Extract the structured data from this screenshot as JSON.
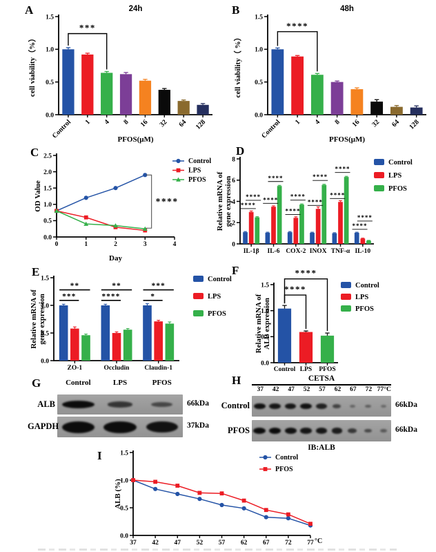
{
  "palette": {
    "blue": "#2453a6",
    "red": "#ec1c24",
    "green": "#35b04a",
    "purple": "#7c3e97",
    "orange": "#f58220",
    "black": "#0a0a0a",
    "brown": "#8a6a2e",
    "navy": "#252f5e"
  },
  "chart_data": [
    {
      "panel": "A",
      "type": "bar",
      "title": "24h",
      "ylabel": "cell viability（%）",
      "xlabel": "PFOS(μM)",
      "categories": [
        "Control",
        "1",
        "4",
        "8",
        "16",
        "32",
        "64",
        "128"
      ],
      "values": [
        1.0,
        0.92,
        0.64,
        0.62,
        0.52,
        0.38,
        0.21,
        0.15
      ],
      "errors": [
        0.025,
        0.02,
        0.02,
        0.025,
        0.02,
        0.02,
        0.015,
        0.02
      ],
      "bar_colors": [
        "#2453a6",
        "#ec1c24",
        "#35b04a",
        "#7c3e97",
        "#f58220",
        "#0a0a0a",
        "#8a6a2e",
        "#252f5e"
      ],
      "err_match": true,
      "rotate_labels": true,
      "ylim": [
        0,
        1.5
      ],
      "yticks": [
        "0.0",
        "0.5",
        "1.0",
        "1.5"
      ],
      "significance": [
        {
          "from": 0,
          "to": 2,
          "label": "***",
          "y": 1.24
        }
      ]
    },
    {
      "panel": "B",
      "type": "bar",
      "title": "48h",
      "ylabel": "cell viability（ %）",
      "xlabel": "PFOS(μM)",
      "categories": [
        "Control",
        "1",
        "4",
        "8",
        "16",
        "32",
        "64",
        "128"
      ],
      "values": [
        1.0,
        0.89,
        0.61,
        0.5,
        0.39,
        0.2,
        0.12,
        0.11
      ],
      "errors": [
        0.02,
        0.015,
        0.02,
        0.015,
        0.02,
        0.03,
        0.02,
        0.025
      ],
      "bar_colors": [
        "#2453a6",
        "#ec1c24",
        "#35b04a",
        "#7c3e97",
        "#f58220",
        "#0a0a0a",
        "#8a6a2e",
        "#252f5e"
      ],
      "err_match": true,
      "rotate_labels": true,
      "ylim": [
        0,
        1.5
      ],
      "yticks": [
        "0.0",
        "0.5",
        "1.0",
        "1.5"
      ],
      "significance": [
        {
          "from": 0,
          "to": 2,
          "label": "****",
          "y": 1.27
        }
      ]
    },
    {
      "panel": "C",
      "type": "line",
      "ylabel": "OD Value",
      "xlabel": "Day",
      "x_numeric": true,
      "x": [
        0,
        1,
        2,
        3
      ],
      "xlim": [
        0,
        4
      ],
      "xticks": [
        "0",
        "1",
        "2",
        "3",
        "4"
      ],
      "ylim": [
        0,
        2.5
      ],
      "yticks": [
        "0.0",
        "0.5",
        "1.0",
        "1.5",
        "2.0",
        "2.5"
      ],
      "series": [
        {
          "name": "Control",
          "color": "#2453a6",
          "marker": "circle",
          "values": [
            0.8,
            1.2,
            1.5,
            1.9
          ]
        },
        {
          "name": "LPS",
          "color": "#ec1c24",
          "marker": "square",
          "values": [
            0.8,
            0.6,
            0.3,
            0.2
          ]
        },
        {
          "name": "PFOS",
          "color": "#35b04a",
          "marker": "triangle",
          "values": [
            0.8,
            0.4,
            0.35,
            0.25
          ]
        }
      ],
      "bracket": {
        "x": 3.22,
        "x_tick": 3.03,
        "y_top": 1.9,
        "y_bottom": 0.27,
        "label": "****"
      }
    },
    {
      "panel": "D",
      "type": "grouped-bar",
      "ylabel_lines": [
        "Relative mRNA of",
        "gene expression"
      ],
      "categories": [
        "IL-1β",
        "IL-6",
        "COX-2",
        "INOX",
        "TNF-α",
        "IL-10"
      ],
      "series": [
        {
          "name": "Control",
          "color": "#2453a6",
          "values": [
            1.1,
            1.05,
            1.1,
            1.05,
            1.0,
            1.05
          ],
          "errors": [
            0.06,
            0.05,
            0.06,
            0.05,
            0.05,
            0.05
          ]
        },
        {
          "name": "LPS",
          "color": "#ec1c24",
          "values": [
            3.0,
            3.5,
            2.45,
            3.3,
            3.95,
            0.5
          ],
          "errors": [
            0.1,
            0.08,
            0.1,
            0.18,
            0.12,
            0.04
          ]
        },
        {
          "name": "PFOS",
          "color": "#35b04a",
          "values": [
            2.5,
            5.45,
            3.7,
            5.55,
            6.3,
            0.3
          ],
          "errors": [
            0.06,
            0.06,
            0.06,
            0.06,
            0.06,
            0.03
          ]
        }
      ],
      "ylim": [
        0,
        8
      ],
      "yticks": [
        "0",
        "2",
        "4",
        "6",
        "8"
      ],
      "sig_style": "underline",
      "sig": [
        {
          "lower": "****",
          "upper": "****"
        },
        {
          "lower": "****",
          "upper": "****"
        },
        {
          "lower": "****",
          "upper": "****"
        },
        {
          "lower": "****",
          "upper": "****"
        },
        {
          "lower": "****",
          "upper": "****"
        },
        {
          "lower": "****",
          "upper": "****"
        }
      ],
      "legend": [
        {
          "label": "Control",
          "color": "#2453a6"
        },
        {
          "label": "LPS",
          "color": "#ec1c24"
        },
        {
          "label": "PFOS",
          "color": "#35b04a"
        }
      ]
    },
    {
      "panel": "E",
      "type": "grouped-bar",
      "ylabel_lines": [
        "Relative mRNA of",
        "gene expression"
      ],
      "categories": [
        "ZO-1",
        "Occludin",
        "Claudin-1"
      ],
      "series": [
        {
          "name": "Control",
          "color": "#2453a6",
          "values": [
            1.0,
            1.0,
            1.0
          ],
          "errors": [
            0.02,
            0.02,
            0.03
          ]
        },
        {
          "name": "LPS",
          "color": "#ec1c24",
          "values": [
            0.58,
            0.5,
            0.71
          ],
          "errors": [
            0.03,
            0.02,
            0.02
          ]
        },
        {
          "name": "PFOS",
          "color": "#35b04a",
          "values": [
            0.46,
            0.56,
            0.67
          ],
          "errors": [
            0.02,
            0.02,
            0.03
          ]
        }
      ],
      "ylim": [
        0,
        1.5
      ],
      "yticks": [
        "0.0",
        "0.5",
        "1.0",
        "1.5"
      ],
      "sig_style": "lines",
      "sig_y": [
        1.09,
        1.28
      ],
      "sig": [
        {
          "lower": "***",
          "upper": "**"
        },
        {
          "lower": "****",
          "upper": "**"
        },
        {
          "lower": "*",
          "upper": "***"
        }
      ],
      "legend": [
        {
          "label": "Control",
          "color": "#2453a6"
        },
        {
          "label": "LPS",
          "color": "#ec1c24"
        },
        {
          "label": "PFOS",
          "color": "#35b04a"
        }
      ]
    },
    {
      "panel": "F",
      "type": "bar",
      "ylabel_lines": [
        "Relative mRNA of",
        "ALB expression"
      ],
      "categories": [
        "Control",
        "LPS",
        "PFOS"
      ],
      "values": [
        1.04,
        0.59,
        0.52
      ],
      "errors": [
        0.06,
        0.02,
        0.05
      ],
      "bar_colors": [
        "#2453a6",
        "#ec1c24",
        "#35b04a"
      ],
      "err_match": false,
      "rotate_labels": false,
      "ylim": [
        0,
        1.5
      ],
      "yticks": [
        "0.0",
        "0.5",
        "1.0",
        "1.5"
      ],
      "significance": [
        {
          "from": 0,
          "to": 1,
          "label": "****",
          "y": 1.3
        },
        {
          "from": 0,
          "to": 2,
          "label": "****",
          "y": 1.61
        }
      ],
      "legend": [
        {
          "label": "Control",
          "color": "#2453a6"
        },
        {
          "label": "LPS",
          "color": "#ec1c24"
        },
        {
          "label": "PFOS",
          "color": "#35b04a"
        }
      ]
    },
    {
      "panel": "I",
      "type": "line",
      "ylabel": "ALB (%)",
      "x_numeric": false,
      "x": [
        "37",
        "42",
        "47",
        "52",
        "57",
        "62",
        "67",
        "72",
        "77"
      ],
      "x_unit": "°C",
      "ylim": [
        0,
        1.5
      ],
      "yticks": [
        "0.0",
        "0.5",
        "1.0",
        "1.5"
      ],
      "series": [
        {
          "name": "Control",
          "color": "#2453a6",
          "marker": "circle",
          "values": [
            1.0,
            0.84,
            0.75,
            0.66,
            0.55,
            0.49,
            0.33,
            0.31,
            0.18
          ]
        },
        {
          "name": "PFOS",
          "color": "#ec1c24",
          "marker": "square",
          "values": [
            1.0,
            0.97,
            0.9,
            0.77,
            0.76,
            0.63,
            0.46,
            0.38,
            0.21
          ]
        }
      ]
    }
  ],
  "blots": {
    "G": {
      "letter": "G",
      "columns": [
        "Control",
        "LPS",
        "PFOS"
      ],
      "rows": [
        {
          "label": "ALB",
          "kda": "66kDa",
          "bands": [
            1.0,
            0.62,
            0.45
          ]
        },
        {
          "label": "GAPDH",
          "kda": "37kDa",
          "bands": [
            1.0,
            1.0,
            0.95
          ]
        }
      ]
    },
    "H": {
      "letter": "H",
      "title": "CETSA",
      "temps": [
        "37",
        "42",
        "47",
        "52",
        "57",
        "62",
        "67",
        "72",
        "77°C"
      ],
      "rows": [
        {
          "label": "Control",
          "kda": "66kDa",
          "bands": [
            0.95,
            0.9,
            0.9,
            0.95,
            0.8,
            0.5,
            0.2,
            0.26,
            0.16
          ]
        },
        {
          "label": "PFOS",
          "kda": "66kDa",
          "bands": [
            1.0,
            1.0,
            0.95,
            0.9,
            0.9,
            0.85,
            0.6,
            0.45,
            0.3
          ]
        }
      ],
      "footer": "IB:ALB"
    }
  }
}
